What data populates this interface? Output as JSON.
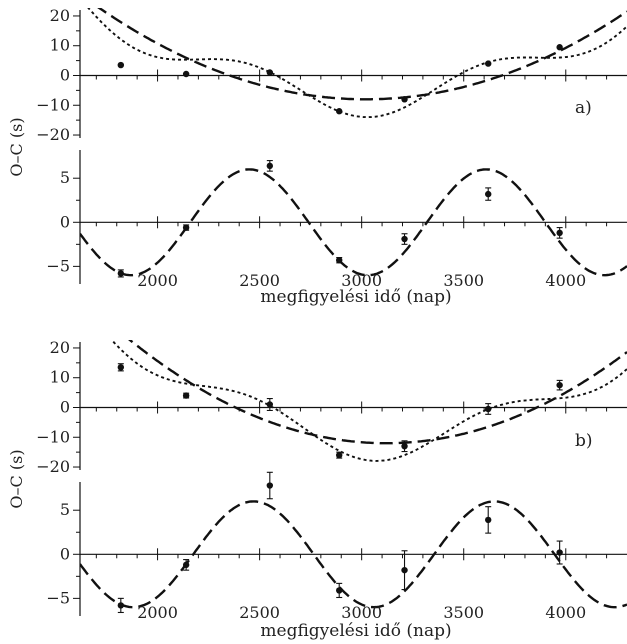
{
  "chart_data": {
    "type": "line",
    "ylabel": "O–C (s)",
    "xlabel": "megfigyelési idő (nap)",
    "xlim": [
      1620,
      4300
    ],
    "xticks": [
      2000,
      2500,
      3000,
      3500,
      4000
    ],
    "xticks_minor": [
      1700,
      1800,
      1900,
      2100,
      2200,
      2300,
      2400,
      2600,
      2700,
      2800,
      2900,
      3100,
      3200,
      3300,
      3400,
      3600,
      3700,
      3800,
      3900,
      4100,
      4200
    ],
    "panels": [
      {
        "label": "a)",
        "upper": {
          "ylim": [
            -21,
            22
          ],
          "yticks": [
            -20,
            -10,
            0,
            10,
            20
          ],
          "points": [
            {
              "x": 1820,
              "y": 3.5
            },
            {
              "x": 2140,
              "y": 0.5
            },
            {
              "x": 2550,
              "y": 1.0
            },
            {
              "x": 2890,
              "y": -12.0
            },
            {
              "x": 3210,
              "y": -8.0
            },
            {
              "x": 3620,
              "y": 4.0
            },
            {
              "x": 3970,
              "y": 9.5
            }
          ],
          "dashed_quadratic": {
            "vertex_x": 3020,
            "vertex_y": -8,
            "coef": 1.8e-05
          },
          "dotted_combined": {
            "vertex_x": 3020,
            "vertex_y": -8,
            "coef": 1.8e-05,
            "sin_amp": 6,
            "sin_period": 1160,
            "sin_peak_x": 2450
          }
        },
        "lower": {
          "ylim": [
            -7,
            8.2
          ],
          "yticks": [
            -5,
            0,
            5
          ],
          "points": [
            {
              "x": 1820,
              "y": -5.8,
              "err": 0.4
            },
            {
              "x": 2140,
              "y": -0.6,
              "err": 0.3
            },
            {
              "x": 2550,
              "y": 6.4,
              "err": 0.6
            },
            {
              "x": 2890,
              "y": -4.3,
              "err": 0.3
            },
            {
              "x": 3210,
              "y": -1.9,
              "err": 0.6
            },
            {
              "x": 3620,
              "y": 3.2,
              "err": 0.7
            },
            {
              "x": 3970,
              "y": -1.2,
              "err": 0.6
            }
          ],
          "dashed_sine": {
            "amp": 6,
            "period": 1160,
            "peak_x": 2450
          }
        }
      },
      {
        "label": "b)",
        "upper": {
          "ylim": [
            -21,
            22
          ],
          "yticks": [
            -20,
            -10,
            0,
            10,
            20
          ],
          "points": [
            {
              "x": 1820,
              "y": 13.5,
              "err": 1.2
            },
            {
              "x": 2140,
              "y": 4.0,
              "err": 0.8
            },
            {
              "x": 2550,
              "y": 1.0,
              "err": 2.0
            },
            {
              "x": 2890,
              "y": -16.0,
              "err": 1.0
            },
            {
              "x": 3210,
              "y": -13.0,
              "err": 1.8
            },
            {
              "x": 3620,
              "y": -0.5,
              "err": 1.8
            },
            {
              "x": 3970,
              "y": 7.5,
              "err": 1.6
            }
          ],
          "dashed_quadratic": {
            "vertex_x": 3120,
            "vertex_y": -12,
            "coef": 2.2e-05
          },
          "dotted_combined": {
            "vertex_x": 3120,
            "vertex_y": -12,
            "coef": 2.2e-05,
            "sin_amp": 6,
            "sin_period": 1180,
            "sin_peak_x": 2470
          }
        },
        "lower": {
          "ylim": [
            -7,
            8.2
          ],
          "yticks": [
            -5,
            0,
            5
          ],
          "points": [
            {
              "x": 1820,
              "y": -5.8,
              "err": 0.8
            },
            {
              "x": 2140,
              "y": -1.2,
              "err": 0.6
            },
            {
              "x": 2550,
              "y": 7.8,
              "err": 1.5
            },
            {
              "x": 2890,
              "y": -4.1,
              "err": 0.8
            },
            {
              "x": 3210,
              "y": -1.8,
              "err": 2.2
            },
            {
              "x": 3620,
              "y": 3.9,
              "err": 1.5
            },
            {
              "x": 3970,
              "y": 0.2,
              "err": 1.3
            }
          ],
          "dashed_sine": {
            "amp": 6,
            "period": 1180,
            "peak_x": 2470
          }
        }
      }
    ]
  }
}
